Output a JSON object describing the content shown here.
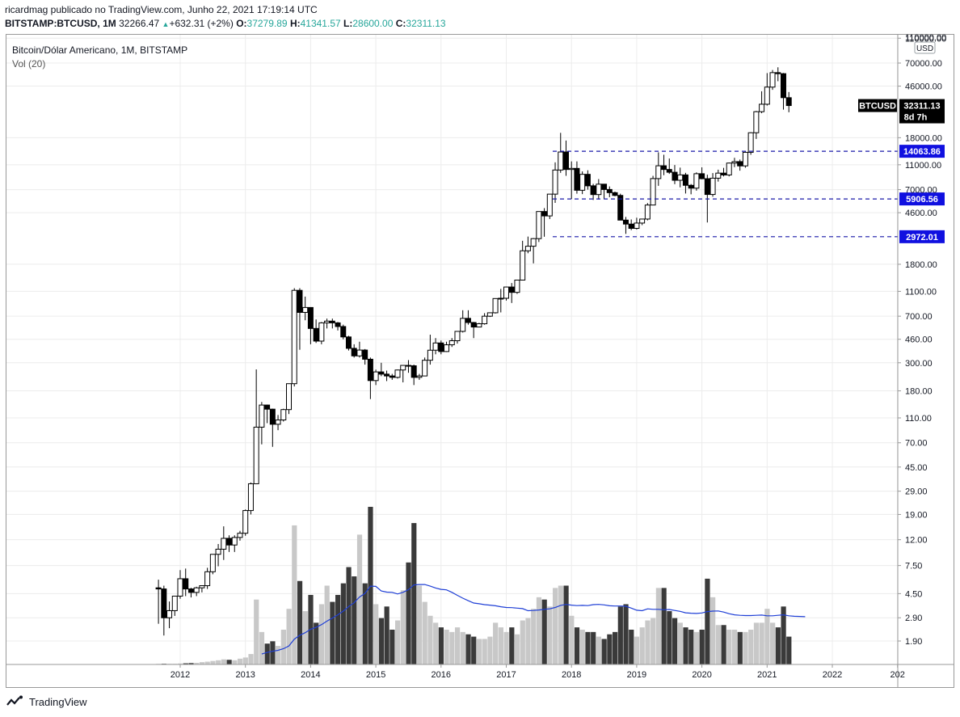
{
  "header": {
    "publisher_line": "ricardmag publicado no TradingView.com, Junho 22, 2021 17:19:14 UTC",
    "symbol": "BITSTAMP:BTCUSD, 1M",
    "last": "32266.47",
    "change": "+632.31 (+2%)",
    "o_label": "O:",
    "o": "37279.89",
    "h_label": "H:",
    "h": "41341.57",
    "l_label": "L:",
    "l": "28600.00",
    "c_label": "C:",
    "c": "32311.13"
  },
  "legend": {
    "title": "Bitcoin/Dólar Americano, 1M, BITSTAMP",
    "volume": "Vol (20)"
  },
  "footer": {
    "brand": "TradingView"
  },
  "colors": {
    "up_body": "#ffffff",
    "down_body": "#000000",
    "wick": "#000000",
    "vol_up": "#c8c8c8",
    "vol_down": "#3a3a3a",
    "vol_ma": "#1f3fd6",
    "hline": "#1a1aa8",
    "hlabel_bg": "#1010e0",
    "price_tag_bg": "#000000",
    "grid": "#ececec",
    "text": "#131722"
  },
  "chart_data": {
    "type": "candlestick",
    "scale": "log",
    "price_axis_currency": "USD",
    "price_ticks": [
      "110000.00",
      "70000.00",
      "46000.00",
      "18000.00",
      "11000.00",
      "7000.00",
      "4600.00",
      "1800.00",
      "1100.00",
      "700.00",
      "460.00",
      "300.00",
      "180.00",
      "110.00",
      "70.00",
      "45.00",
      "29.00",
      "19.00",
      "12.00",
      "7.50",
      "4.50",
      "2.90",
      "1.90"
    ],
    "x_ticks": [
      "2012",
      "2013",
      "2014",
      "2015",
      "2016",
      "2017",
      "2018",
      "2019",
      "2020",
      "2021",
      "2022",
      "202"
    ],
    "last_price_tag": {
      "symbol": "BTCUSD",
      "price": "32311.13",
      "countdown": "8d 7h"
    },
    "horizontal_levels": [
      {
        "label": "14063.86",
        "value": 14063.86
      },
      {
        "label": "5906.56",
        "value": 5906.56
      },
      {
        "label": "2972.01",
        "value": 2972.01
      }
    ],
    "start": "2011-09",
    "candles": [
      [
        5.0,
        5.8,
        2.6,
        4.9
      ],
      [
        4.9,
        5.2,
        2.1,
        2.9
      ],
      [
        2.9,
        3.9,
        2.4,
        3.3
      ],
      [
        3.3,
        4.3,
        3.0,
        4.3
      ],
      [
        4.3,
        6.9,
        4.1,
        5.9
      ],
      [
        5.9,
        7.1,
        4.3,
        4.9
      ],
      [
        4.9,
        5.0,
        4.2,
        4.6
      ],
      [
        4.6,
        5.1,
        4.3,
        5.0
      ],
      [
        5.0,
        5.2,
        4.6,
        5.2
      ],
      [
        5.2,
        7.2,
        4.9,
        6.7
      ],
      [
        6.7,
        9.2,
        6.4,
        9.2
      ],
      [
        9.2,
        11.1,
        7.4,
        10.1
      ],
      [
        10.1,
        15.3,
        8.3,
        12.3
      ],
      [
        12.3,
        13.0,
        9.6,
        10.9
      ],
      [
        10.9,
        13.0,
        9.6,
        12.5
      ],
      [
        12.5,
        14.1,
        11.8,
        13.5
      ],
      [
        13.5,
        20.8,
        12.9,
        20.4
      ],
      [
        20.4,
        34.0,
        19.0,
        33.2
      ],
      [
        33.2,
        266.0,
        33.0,
        93.0
      ],
      [
        93.0,
        147.0,
        68.0,
        139.0
      ],
      [
        139.0,
        140.0,
        100.0,
        129.0
      ],
      [
        129.0,
        130.0,
        65.0,
        98.0
      ],
      [
        98.0,
        116.0,
        88.0,
        106.0
      ],
      [
        106.0,
        130.0,
        103.0,
        128.0
      ],
      [
        128.0,
        200.0,
        118.0,
        205.0
      ],
      [
        205.0,
        1165.0,
        195.0,
        1120.0
      ],
      [
        1120.0,
        1165.0,
        380.0,
        750.0
      ],
      [
        750.0,
        1000.0,
        650.0,
        820.0
      ],
      [
        820.0,
        740.0,
        420.0,
        560.0
      ],
      [
        560.0,
        660.0,
        430.0,
        445.0
      ],
      [
        445.0,
        630.0,
        420.0,
        620.0
      ],
      [
        620.0,
        670.0,
        560.0,
        640.0
      ],
      [
        640.0,
        670.0,
        560.0,
        620.0
      ],
      [
        620.0,
        630.0,
        540.0,
        580.0
      ],
      [
        580.0,
        600.0,
        460.0,
        480.0
      ],
      [
        480.0,
        490.0,
        375.0,
        390.0
      ],
      [
        390.0,
        420.0,
        330.0,
        340.0
      ],
      [
        340.0,
        440.0,
        330.0,
        378.0
      ],
      [
        378.0,
        385.0,
        290.0,
        320.0
      ],
      [
        320.0,
        330.0,
        155.0,
        217.0
      ],
      [
        217.0,
        265.0,
        200.0,
        254.0
      ],
      [
        254.0,
        300.0,
        235.0,
        244.0
      ],
      [
        244.0,
        260.0,
        215.0,
        236.0
      ],
      [
        236.0,
        245.0,
        220.0,
        230.0
      ],
      [
        230.0,
        265.0,
        225.0,
        263.0
      ],
      [
        263.0,
        268.0,
        210.0,
        286.0
      ],
      [
        286.0,
        315.0,
        250.0,
        284.0
      ],
      [
        284.0,
        290.0,
        200.0,
        230.0
      ],
      [
        230.0,
        245.0,
        220.0,
        236.0
      ],
      [
        236.0,
        330.0,
        235.0,
        314.0
      ],
      [
        314.0,
        500.0,
        290.0,
        377.0
      ],
      [
        377.0,
        470.0,
        350.0,
        430.0
      ],
      [
        430.0,
        450.0,
        350.0,
        368.0
      ],
      [
        368.0,
        440.0,
        365.0,
        416.0
      ],
      [
        416.0,
        470.0,
        400.0,
        448.0
      ],
      [
        448.0,
        460.0,
        425.0,
        531.0
      ],
      [
        531.0,
        780.0,
        520.0,
        673.0
      ],
      [
        673.0,
        780.0,
        600.0,
        624.0
      ],
      [
        624.0,
        630.0,
        470.0,
        575.0
      ],
      [
        575.0,
        620.0,
        590.0,
        610.0
      ],
      [
        610.0,
        740.0,
        600.0,
        700.0
      ],
      [
        700.0,
        750.0,
        690.0,
        745.0
      ],
      [
        745.0,
        970.0,
        735.0,
        965.0
      ],
      [
        965.0,
        1150.0,
        750.0,
        970.0
      ],
      [
        970.0,
        1200.0,
        930.0,
        1190.0
      ],
      [
        1190.0,
        1280.0,
        890.0,
        1080.0
      ],
      [
        1080.0,
        1350.0,
        1050.0,
        1350.0
      ],
      [
        1350.0,
        2760.0,
        1340.0,
        2300.0
      ],
      [
        2300.0,
        2980.0,
        2200.0,
        2500.0
      ],
      [
        2500.0,
        2900.0,
        1830.0,
        2870.0
      ],
      [
        2870.0,
        4480.0,
        2700.0,
        4700.0
      ],
      [
        4700.0,
        5000.0,
        2970.0,
        4340.0
      ],
      [
        4340.0,
        6450.0,
        4100.0,
        6450.0
      ],
      [
        6450.0,
        11500.0,
        5500.0,
        10000.0
      ],
      [
        10000.0,
        19666.0,
        9500.0,
        13880.0
      ],
      [
        13880.0,
        17100.0,
        9000.0,
        10100.0
      ],
      [
        10100.0,
        11700.0,
        5900.0,
        10300.0
      ],
      [
        10300.0,
        11700.0,
        6500.0,
        6920.0
      ],
      [
        6920.0,
        9750.0,
        6450.0,
        9245.0
      ],
      [
        9245.0,
        9950.0,
        7000.0,
        7500.0
      ],
      [
        7500.0,
        7780.0,
        5800.0,
        6400.0
      ],
      [
        6400.0,
        8480.0,
        5850.0,
        7730.0
      ],
      [
        7730.0,
        7760.0,
        5880.0,
        7020.0
      ],
      [
        7020.0,
        7420.0,
        6100.0,
        6625.0
      ],
      [
        6625.0,
        6750.0,
        6200.0,
        6300.0
      ],
      [
        6300.0,
        6500.0,
        4040.0,
        4020.0
      ],
      [
        4020.0,
        4260.0,
        3130.0,
        3740.0
      ],
      [
        3740.0,
        4070.0,
        3350.0,
        3460.0
      ],
      [
        3460.0,
        4200.0,
        3390.0,
        3810.0
      ],
      [
        3810.0,
        4100.0,
        3670.0,
        4100.0
      ],
      [
        4100.0,
        5480.0,
        4000.0,
        5290.0
      ],
      [
        5290.0,
        9000.0,
        5300.0,
        8560.0
      ],
      [
        8560.0,
        13800.0,
        7500.0,
        10800.0
      ],
      [
        10800.0,
        13200.0,
        9100.0,
        10100.0
      ],
      [
        10100.0,
        12330.0,
        9320.0,
        9600.0
      ],
      [
        9600.0,
        10950.0,
        7730.0,
        8300.0
      ],
      [
        8300.0,
        10450.0,
        7300.0,
        9150.0
      ],
      [
        9150.0,
        9500.0,
        6520.0,
        7570.0
      ],
      [
        7570.0,
        7750.0,
        6430.0,
        7190.0
      ],
      [
        7190.0,
        9580.0,
        6870.0,
        9350.0
      ],
      [
        9350.0,
        10500.0,
        8450.0,
        8540.0
      ],
      [
        8540.0,
        9180.0,
        3850.0,
        6410.0
      ],
      [
        6410.0,
        9460.0,
        6150.0,
        8620.0
      ],
      [
        8620.0,
        10060.0,
        8100.0,
        9450.0
      ],
      [
        9450.0,
        10400.0,
        8900.0,
        9140.0
      ],
      [
        9140.0,
        11450.0,
        8900.0,
        11350.0
      ],
      [
        11350.0,
        12490.0,
        10540.0,
        11650.0
      ],
      [
        11650.0,
        12100.0,
        9880.0,
        10780.0
      ],
      [
        10780.0,
        14100.0,
        10420.0,
        13800.0
      ],
      [
        13800.0,
        19900.0,
        13200.0,
        19700.0
      ],
      [
        19700.0,
        29300.0,
        17600.0,
        28900.0
      ],
      [
        28900.0,
        41900.0,
        28100.0,
        33100.0
      ],
      [
        33100.0,
        58300.0,
        32300.0,
        45200.0
      ],
      [
        45200.0,
        61700.0,
        43000.0,
        58800.0
      ],
      [
        58800.0,
        64800.0,
        50300.0,
        57700.0
      ],
      [
        57700.0,
        58400.0,
        30000.0,
        37300.0
      ],
      [
        37279.89,
        41341.57,
        28600.0,
        32311.13
      ]
    ],
    "volume_scale_max": 20000000,
    "volume": [
      0.002,
      0.003,
      0.003,
      0.003,
      0.004,
      0.005,
      0.006,
      0.007,
      0.01,
      0.012,
      0.015,
      0.018,
      0.022,
      0.02,
      0.018,
      0.025,
      0.03,
      0.045,
      0.28,
      0.14,
      0.09,
      0.1,
      0.08,
      0.15,
      0.24,
      0.6,
      0.36,
      0.23,
      0.3,
      0.18,
      0.26,
      0.34,
      0.27,
      0.3,
      0.35,
      0.42,
      0.38,
      0.56,
      0.35,
      0.68,
      0.26,
      0.2,
      0.25,
      0.15,
      0.19,
      0.32,
      0.44,
      0.61,
      0.34,
      0.27,
      0.21,
      0.18,
      0.16,
      0.15,
      0.14,
      0.16,
      0.14,
      0.13,
      0.12,
      0.11,
      0.11,
      0.12,
      0.18,
      0.16,
      0.14,
      0.16,
      0.13,
      0.19,
      0.2,
      0.24,
      0.29,
      0.28,
      0.25,
      0.33,
      0.34,
      0.34,
      0.21,
      0.16,
      0.15,
      0.14,
      0.14,
      0.12,
      0.11,
      0.13,
      0.14,
      0.25,
      0.26,
      0.15,
      0.12,
      0.16,
      0.19,
      0.2,
      0.33,
      0.33,
      0.23,
      0.2,
      0.18,
      0.16,
      0.15,
      0.14,
      0.15,
      0.37,
      0.29,
      0.17,
      0.17,
      0.15,
      0.15,
      0.14,
      0.14,
      0.15,
      0.18,
      0.18,
      0.24,
      0.18,
      0.16,
      0.25,
      0.12,
      0.15,
      0.07
    ],
    "volume_ma20": [
      null,
      null,
      null,
      null,
      null,
      null,
      null,
      null,
      null,
      null,
      null,
      null,
      null,
      null,
      null,
      null,
      null,
      null,
      null,
      0.045,
      0.052,
      0.057,
      0.061,
      0.068,
      0.08,
      0.109,
      0.126,
      0.137,
      0.152,
      0.16,
      0.172,
      0.187,
      0.2,
      0.214,
      0.23,
      0.25,
      0.266,
      0.291,
      0.307,
      0.338,
      0.337,
      0.317,
      0.312,
      0.311,
      0.304,
      0.311,
      0.323,
      0.343,
      0.345,
      0.345,
      0.338,
      0.33,
      0.324,
      0.322,
      0.311,
      0.298,
      0.286,
      0.275,
      0.265,
      0.262,
      0.258,
      0.256,
      0.253,
      0.249,
      0.246,
      0.245,
      0.243,
      0.241,
      0.232,
      0.233,
      0.235,
      0.238,
      0.24,
      0.246,
      0.255,
      0.259,
      0.256,
      0.254,
      0.255,
      0.254,
      0.258,
      0.259,
      0.257,
      0.253,
      0.252,
      0.252,
      0.251,
      0.243,
      0.234,
      0.232,
      0.24,
      0.238,
      0.238,
      0.236,
      0.237,
      0.233,
      0.229,
      0.223,
      0.221,
      0.22,
      0.222,
      0.228,
      0.23,
      0.231,
      0.226,
      0.219,
      0.214,
      0.212,
      0.211,
      0.211,
      0.212,
      0.213,
      0.21,
      0.21,
      0.212,
      0.214,
      0.21,
      0.208,
      0.207,
      0.206
    ]
  }
}
